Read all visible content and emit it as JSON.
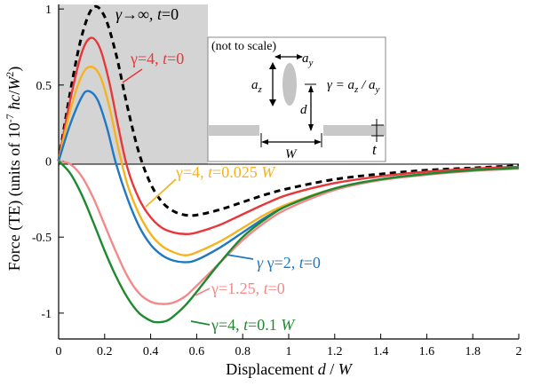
{
  "chart_data": {
    "type": "line",
    "xlabel": "Displacement d / W",
    "ylabel": "Force (TE) (units of 10-7 ħc/W2)",
    "xlim": [
      0,
      2
    ],
    "ylim": [
      -1.17,
      1.03
    ],
    "x_ticks": [
      "0",
      "0.2",
      "0.4",
      "0.6",
      "0.8",
      "1",
      "1.2",
      "1.4",
      "1.6",
      "1.8",
      "2"
    ],
    "y_ticks": [
      "1",
      "0.5",
      "0",
      "-0.5",
      "-1"
    ],
    "y_tick_values": [
      1,
      0.5,
      0,
      -0.5,
      -1
    ],
    "series": [
      {
        "name": "γ→∞, t=0",
        "label_parts": [
          "γ→∞, ",
          "t",
          "=0"
        ],
        "color": "#000000",
        "dash": true,
        "points": [
          [
            0,
            0
          ],
          [
            0.05,
            0.45
          ],
          [
            0.1,
            0.82
          ],
          [
            0.15,
            1.01
          ],
          [
            0.2,
            0.95
          ],
          [
            0.25,
            0.7
          ],
          [
            0.3,
            0.35
          ],
          [
            0.35,
            0.05
          ],
          [
            0.4,
            -0.15
          ],
          [
            0.45,
            -0.27
          ],
          [
            0.5,
            -0.33
          ],
          [
            0.55,
            -0.355
          ],
          [
            0.6,
            -0.355
          ],
          [
            0.7,
            -0.32
          ],
          [
            0.8,
            -0.27
          ],
          [
            0.9,
            -0.22
          ],
          [
            1.0,
            -0.18
          ],
          [
            1.2,
            -0.12
          ],
          [
            1.4,
            -0.085
          ],
          [
            1.6,
            -0.06
          ],
          [
            1.8,
            -0.045
          ],
          [
            2.0,
            -0.03
          ]
        ]
      },
      {
        "name": "γ=4, t=0",
        "label_parts": [
          "γ=4, ",
          "t",
          "=0"
        ],
        "color": "#e8373a",
        "dash": false,
        "points": [
          [
            0,
            0
          ],
          [
            0.05,
            0.4
          ],
          [
            0.1,
            0.71
          ],
          [
            0.14,
            0.81
          ],
          [
            0.18,
            0.74
          ],
          [
            0.22,
            0.52
          ],
          [
            0.26,
            0.22
          ],
          [
            0.3,
            -0.05
          ],
          [
            0.35,
            -0.25
          ],
          [
            0.4,
            -0.37
          ],
          [
            0.45,
            -0.44
          ],
          [
            0.5,
            -0.47
          ],
          [
            0.55,
            -0.48
          ],
          [
            0.6,
            -0.47
          ],
          [
            0.7,
            -0.42
          ],
          [
            0.8,
            -0.35
          ],
          [
            0.9,
            -0.28
          ],
          [
            1.0,
            -0.22
          ],
          [
            1.2,
            -0.145
          ],
          [
            1.4,
            -0.1
          ],
          [
            1.6,
            -0.07
          ],
          [
            1.8,
            -0.05
          ],
          [
            2.0,
            -0.038
          ]
        ]
      },
      {
        "name": "γ=4, t=0.025 W",
        "label_parts": [
          "γ=4, ",
          "t",
          "=0.025 ",
          "W"
        ],
        "color": "#f5b322",
        "dash": false,
        "points": [
          [
            0,
            0
          ],
          [
            0.05,
            0.33
          ],
          [
            0.1,
            0.56
          ],
          [
            0.14,
            0.62
          ],
          [
            0.18,
            0.56
          ],
          [
            0.22,
            0.36
          ],
          [
            0.26,
            0.08
          ],
          [
            0.3,
            -0.16
          ],
          [
            0.35,
            -0.35
          ],
          [
            0.4,
            -0.48
          ],
          [
            0.45,
            -0.56
          ],
          [
            0.5,
            -0.6
          ],
          [
            0.55,
            -0.62
          ],
          [
            0.6,
            -0.6
          ],
          [
            0.7,
            -0.53
          ],
          [
            0.8,
            -0.44
          ],
          [
            0.9,
            -0.35
          ],
          [
            1.0,
            -0.28
          ],
          [
            1.2,
            -0.18
          ],
          [
            1.4,
            -0.12
          ],
          [
            1.6,
            -0.085
          ],
          [
            1.8,
            -0.06
          ],
          [
            2.0,
            -0.045
          ]
        ]
      },
      {
        "name": "γ=2, t=0",
        "label_parts": [
          "γ=2, ",
          "t",
          "=0"
        ],
        "color": "#1f78c1",
        "dash": false,
        "points": [
          [
            0,
            0
          ],
          [
            0.05,
            0.24
          ],
          [
            0.1,
            0.42
          ],
          [
            0.13,
            0.46
          ],
          [
            0.17,
            0.4
          ],
          [
            0.21,
            0.22
          ],
          [
            0.25,
            -0.02
          ],
          [
            0.3,
            -0.25
          ],
          [
            0.35,
            -0.43
          ],
          [
            0.4,
            -0.55
          ],
          [
            0.45,
            -0.62
          ],
          [
            0.5,
            -0.655
          ],
          [
            0.55,
            -0.665
          ],
          [
            0.6,
            -0.65
          ],
          [
            0.7,
            -0.57
          ],
          [
            0.8,
            -0.47
          ],
          [
            0.9,
            -0.37
          ],
          [
            1.0,
            -0.29
          ],
          [
            1.2,
            -0.18
          ],
          [
            1.4,
            -0.12
          ],
          [
            1.6,
            -0.085
          ],
          [
            1.8,
            -0.06
          ],
          [
            2.0,
            -0.045
          ]
        ]
      },
      {
        "name": "γ=1.25, t=0",
        "label_parts": [
          "γ=1.25, ",
          "t",
          "=0"
        ],
        "color": "#f28a8a",
        "dash": false,
        "points": [
          [
            0,
            0
          ],
          [
            0.05,
            -0.02
          ],
          [
            0.1,
            -0.1
          ],
          [
            0.15,
            -0.24
          ],
          [
            0.2,
            -0.42
          ],
          [
            0.25,
            -0.6
          ],
          [
            0.3,
            -0.76
          ],
          [
            0.35,
            -0.87
          ],
          [
            0.4,
            -0.925
          ],
          [
            0.45,
            -0.94
          ],
          [
            0.5,
            -0.93
          ],
          [
            0.55,
            -0.89
          ],
          [
            0.6,
            -0.82
          ],
          [
            0.7,
            -0.67
          ],
          [
            0.8,
            -0.52
          ],
          [
            0.9,
            -0.4
          ],
          [
            1.0,
            -0.31
          ],
          [
            1.2,
            -0.19
          ],
          [
            1.4,
            -0.125
          ],
          [
            1.6,
            -0.09
          ],
          [
            1.8,
            -0.065
          ],
          [
            2.0,
            -0.05
          ]
        ]
      },
      {
        "name": "γ=4, t=0.1 W",
        "label_parts": [
          "γ=4, ",
          "t",
          "=0.1 ",
          "W"
        ],
        "color": "#1d8a2e",
        "dash": false,
        "points": [
          [
            0,
            0
          ],
          [
            0.05,
            -0.08
          ],
          [
            0.1,
            -0.22
          ],
          [
            0.15,
            -0.4
          ],
          [
            0.2,
            -0.59
          ],
          [
            0.25,
            -0.76
          ],
          [
            0.3,
            -0.9
          ],
          [
            0.35,
            -1.0
          ],
          [
            0.4,
            -1.05
          ],
          [
            0.43,
            -1.06
          ],
          [
            0.47,
            -1.05
          ],
          [
            0.5,
            -1.02
          ],
          [
            0.55,
            -0.95
          ],
          [
            0.6,
            -0.86
          ],
          [
            0.7,
            -0.67
          ],
          [
            0.8,
            -0.5
          ],
          [
            0.9,
            -0.38
          ],
          [
            1.0,
            -0.29
          ],
          [
            1.2,
            -0.18
          ],
          [
            1.4,
            -0.12
          ],
          [
            1.6,
            -0.085
          ],
          [
            1.8,
            -0.06
          ],
          [
            2.0,
            -0.045
          ]
        ]
      }
    ],
    "inset": {
      "note": "(not to scale)",
      "az": "a",
      "az_sub": "z",
      "ay": "a",
      "ay_sub": "y",
      "d": "d",
      "W": "W",
      "t": "t",
      "gamma_eq": "γ = a",
      "gamma_eq_mid": " / a"
    }
  }
}
